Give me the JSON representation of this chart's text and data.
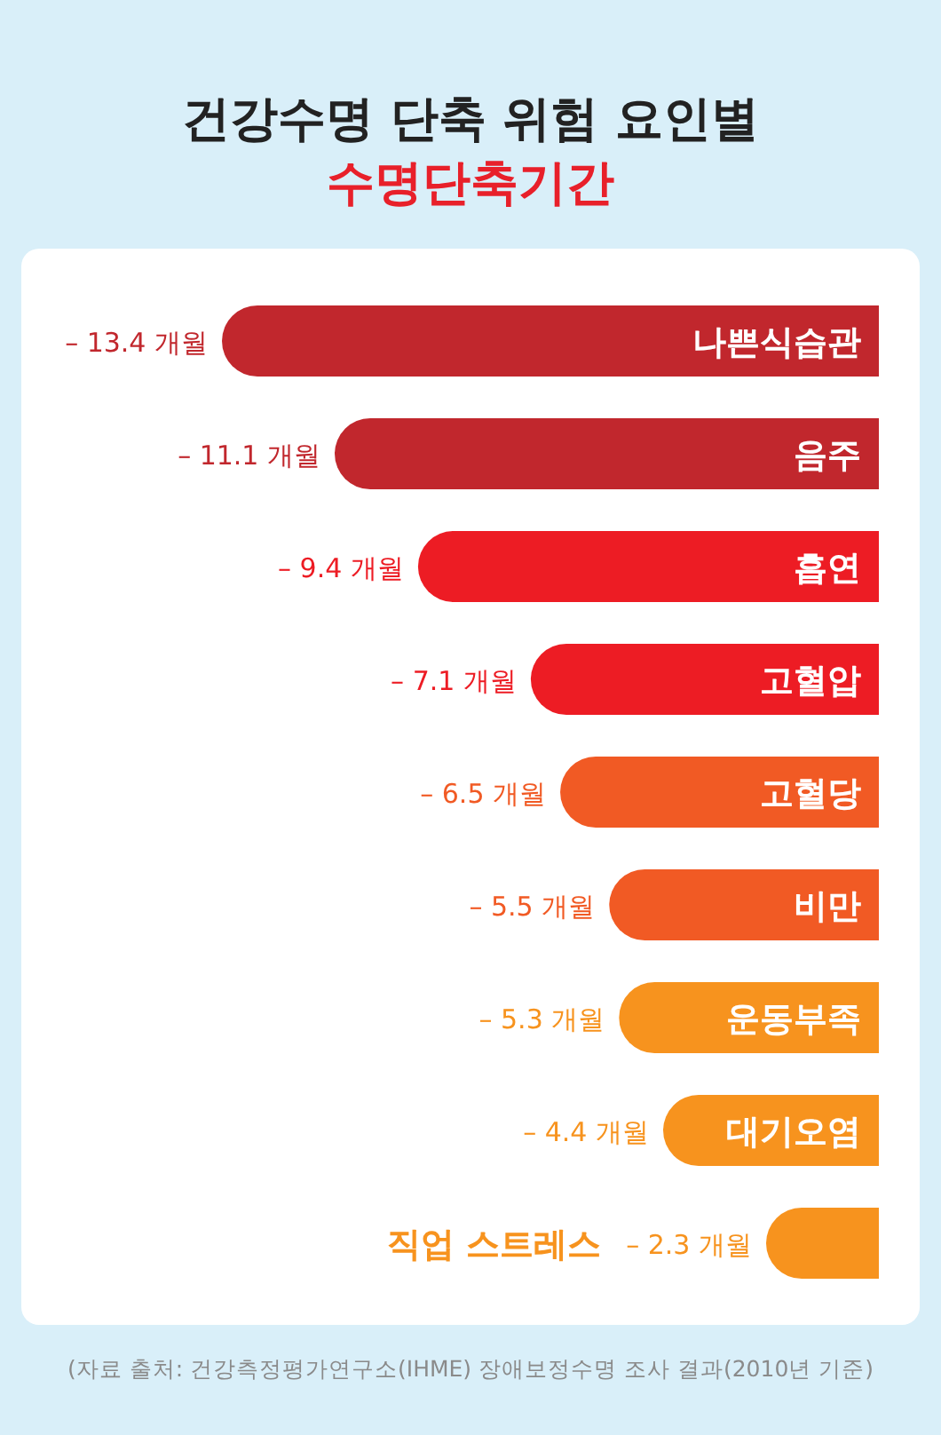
{
  "chart_data": {
    "type": "bar",
    "orientation": "horizontal",
    "title": "건강수명 단축 위험 요인별",
    "subtitle": "수명단축기간",
    "categories": [
      "나쁜식습관",
      "음주",
      "흡연",
      "고혈압",
      "고혈당",
      "비만",
      "운동부족",
      "대기오염",
      "직업 스트레스"
    ],
    "values": [
      -13.4,
      -11.1,
      -9.4,
      -7.1,
      -6.5,
      -5.5,
      -5.3,
      -4.4,
      -2.3
    ],
    "value_labels": [
      "– 13.4 개월",
      "– 11.1 개월",
      "– 9.4 개월",
      "– 7.1 개월",
      "– 6.5 개월",
      "– 5.5 개월",
      "– 5.3 개월",
      "– 4.4 개월",
      "– 2.3 개월"
    ],
    "colors": [
      "#c1272d",
      "#c1272d",
      "#ed1c24",
      "#ed1c24",
      "#f15a24",
      "#f15a24",
      "#f7931e",
      "#f7931e",
      "#f7931e"
    ],
    "annotations": [
      "(자료 출처: 건강측정평가연구소(IHME) 장애보정수명 조사 결과(2010년 기준)"
    ]
  }
}
